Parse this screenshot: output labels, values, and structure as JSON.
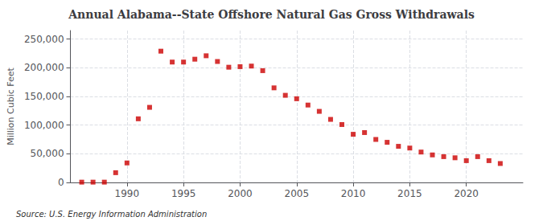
{
  "chart_data": {
    "type": "scatter",
    "title": "Annual Alabama--State Offshore Natural Gas Gross Withdrawals",
    "ylabel": "Million Cubic Feet",
    "annotations": [
      "Source: U.S. Energy Information Administration"
    ],
    "x": [
      1986,
      1987,
      1988,
      1989,
      1990,
      1991,
      1992,
      1993,
      1994,
      1995,
      1996,
      1997,
      1998,
      1999,
      2000,
      2001,
      2002,
      2003,
      2004,
      2005,
      2006,
      2007,
      2008,
      2009,
      2010,
      2011,
      2012,
      2013,
      2014,
      2015,
      2016,
      2017,
      2018,
      2019,
      2020,
      2021,
      2022,
      2023
    ],
    "values": [
      500,
      500,
      500,
      17000,
      34000,
      111000,
      131000,
      229000,
      210000,
      210000,
      215000,
      221000,
      211000,
      201000,
      202000,
      203000,
      195000,
      165000,
      152000,
      146000,
      135000,
      124000,
      110000,
      101000,
      84000,
      87000,
      75000,
      70000,
      63000,
      60000,
      53000,
      48000,
      45000,
      43000,
      38000,
      45000,
      38000,
      33000
    ],
    "color": "#cc0000",
    "marker": "square",
    "xlim": [
      1985,
      2025
    ],
    "xticks": [
      1990,
      1995,
      2000,
      2005,
      2010,
      2015,
      2020
    ],
    "ylim": [
      0,
      265000
    ],
    "yticks": [
      0,
      {
        "value": 50000,
        "label": "50,000"
      },
      {
        "value": 100000,
        "label": "100,000"
      },
      {
        "value": 150000,
        "label": "150,000"
      },
      {
        "value": 200000,
        "label": "200,000"
      },
      {
        "value": 250000,
        "label": "250,000"
      }
    ],
    "grid": true
  }
}
